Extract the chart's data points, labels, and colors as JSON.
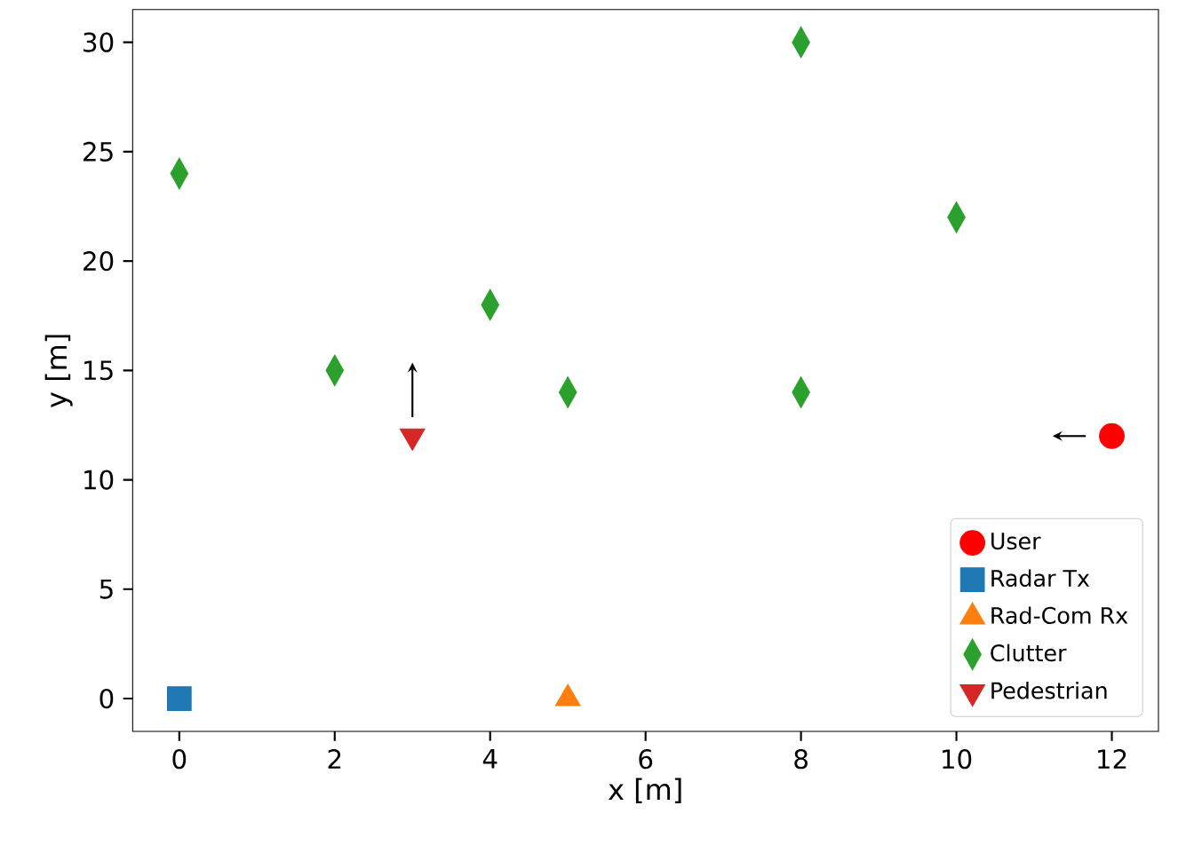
{
  "chart_data": {
    "type": "scatter",
    "xlabel": "x [m]",
    "ylabel": "y [m]",
    "xlim": [
      -0.6,
      12.6
    ],
    "ylim": [
      -1.5,
      31.5
    ],
    "xticks": [
      0,
      2,
      4,
      6,
      8,
      10,
      12
    ],
    "yticks": [
      0,
      5,
      10,
      15,
      20,
      25,
      30
    ],
    "grid": false,
    "legend": "bottom right",
    "series": [
      {
        "name": "User",
        "color": "#ff0000",
        "marker": "circle",
        "x": [
          12
        ],
        "values": [
          12
        ]
      },
      {
        "name": "Radar Tx",
        "color": "#1f77b4",
        "marker": "square",
        "x": [
          0
        ],
        "values": [
          0
        ]
      },
      {
        "name": "Rad-Com Rx",
        "color": "#ff7f0e",
        "marker": "triangle",
        "x": [
          5
        ],
        "values": [
          0
        ]
      },
      {
        "name": "Clutter",
        "color": "#2ca02c",
        "marker": "diamond",
        "x": [
          0,
          2,
          4,
          5,
          8,
          8,
          10
        ],
        "values": [
          24,
          15,
          18,
          14,
          30,
          14,
          22
        ]
      },
      {
        "name": "Pedestrian",
        "color": "#d62728",
        "marker": "triangle_down",
        "x": [
          3
        ],
        "values": [
          12
        ]
      }
    ]
  }
}
